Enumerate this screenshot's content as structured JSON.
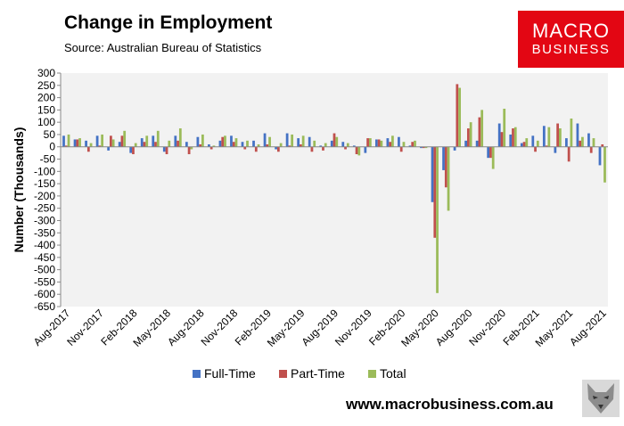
{
  "header": {
    "title": "Change in Employment",
    "subtitle": "Source: Australian Bureau of Statistics"
  },
  "logo": {
    "line1": "MACRO",
    "line2": "BUSINESS",
    "color": "#e30613"
  },
  "footer": {
    "url": "www.macrobusiness.com.au",
    "icon": "wolf-icon"
  },
  "chart_data": {
    "type": "bar",
    "ylabel": "Number (Thousands)",
    "ylim": [
      -650,
      300
    ],
    "yticks": [
      300,
      250,
      200,
      150,
      100,
      50,
      0,
      -50,
      -100,
      -150,
      -200,
      -250,
      -300,
      -350,
      -400,
      -450,
      -500,
      -550,
      -600,
      -650
    ],
    "grid": false,
    "legend_position": "bottom",
    "categories": [
      "Aug-2017",
      "Sep-2017",
      "Oct-2017",
      "Nov-2017",
      "Dec-2017",
      "Jan-2018",
      "Feb-2018",
      "Mar-2018",
      "Apr-2018",
      "May-2018",
      "Jun-2018",
      "Jul-2018",
      "Aug-2018",
      "Sep-2018",
      "Oct-2018",
      "Nov-2018",
      "Dec-2018",
      "Jan-2019",
      "Feb-2019",
      "Mar-2019",
      "Apr-2019",
      "May-2019",
      "Jun-2019",
      "Jul-2019",
      "Aug-2019",
      "Sep-2019",
      "Oct-2019",
      "Nov-2019",
      "Dec-2019",
      "Jan-2020",
      "Feb-2020",
      "Mar-2020",
      "Apr-2020",
      "May-2020",
      "Jun-2020",
      "Jul-2020",
      "Aug-2020",
      "Sep-2020",
      "Oct-2020",
      "Nov-2020",
      "Dec-2020",
      "Jan-2021",
      "Feb-2021",
      "Mar-2021",
      "Apr-2021",
      "May-2021",
      "Jun-2021",
      "Jul-2021",
      "Aug-2021"
    ],
    "xtick_labels": [
      "Aug-2017",
      "Nov-2017",
      "Feb-2018",
      "May-2018",
      "Aug-2018",
      "Nov-2018",
      "Feb-2019",
      "May-2019",
      "Aug-2019",
      "Nov-2019",
      "Feb-2020",
      "May-2020",
      "Aug-2020",
      "Nov-2020",
      "Feb-2021",
      "May-2021",
      "Aug-2021"
    ],
    "series": [
      {
        "name": "Full-Time",
        "color": "#4472c4",
        "values": [
          45,
          30,
          25,
          45,
          -15,
          20,
          -25,
          35,
          45,
          -20,
          45,
          20,
          40,
          10,
          25,
          45,
          20,
          25,
          55,
          -10,
          55,
          35,
          40,
          5,
          25,
          20,
          5,
          -25,
          30,
          35,
          40,
          5,
          -5,
          -225,
          -95,
          -15,
          25,
          25,
          -45,
          95,
          50,
          15,
          45,
          85,
          -25,
          35,
          95,
          55,
          -75
        ]
      },
      {
        "name": "Part-Time",
        "color": "#c0504d",
        "values": [
          5,
          30,
          -20,
          5,
          45,
          45,
          -30,
          20,
          20,
          -30,
          25,
          -30,
          10,
          -10,
          40,
          20,
          -10,
          -20,
          10,
          -20,
          5,
          10,
          -20,
          -15,
          55,
          -10,
          -30,
          35,
          30,
          20,
          -20,
          20,
          -5,
          -370,
          -165,
          255,
          75,
          120,
          -45,
          60,
          75,
          20,
          -20,
          5,
          95,
          -60,
          25,
          -25,
          10
        ]
      },
      {
        "name": "Total",
        "color": "#9bbb59",
        "values": [
          50,
          35,
          15,
          50,
          30,
          65,
          15,
          45,
          65,
          25,
          75,
          -10,
          50,
          5,
          45,
          35,
          25,
          10,
          40,
          15,
          50,
          45,
          25,
          15,
          40,
          15,
          -35,
          35,
          25,
          45,
          20,
          25,
          -5,
          -595,
          -260,
          240,
          100,
          150,
          -90,
          155,
          80,
          35,
          25,
          80,
          75,
          115,
          40,
          35,
          -145
        ]
      }
    ]
  }
}
